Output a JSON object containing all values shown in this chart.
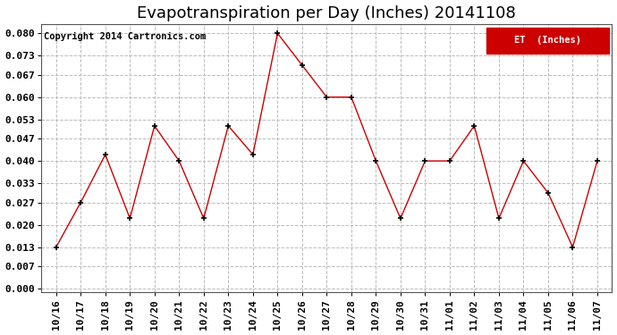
{
  "title": "Evapotranspiration per Day (Inches) 20141108",
  "copyright_text": "Copyright 2014 Cartronics.com",
  "legend_label": "ET  (Inches)",
  "legend_bg_color": "#cc0000",
  "legend_text_color": "#ffffff",
  "x_labels": [
    "10/16",
    "10/17",
    "10/18",
    "10/19",
    "10/20",
    "10/21",
    "10/22",
    "10/23",
    "10/24",
    "10/25",
    "10/26",
    "10/27",
    "10/28",
    "10/29",
    "10/30",
    "10/31",
    "11/01",
    "11/02",
    "11/03",
    "11/04",
    "11/05",
    "11/06",
    "11/07"
  ],
  "y_values": [
    0.013,
    0.027,
    0.042,
    0.022,
    0.051,
    0.04,
    0.022,
    0.051,
    0.042,
    0.08,
    0.07,
    0.06,
    0.06,
    0.04,
    0.022,
    0.04,
    0.04,
    0.051,
    0.022,
    0.04,
    0.03,
    0.013,
    0.04
  ],
  "line_color": "#cc0000",
  "marker_color": "#000000",
  "bg_color": "#ffffff",
  "grid_color": "#bbbbbb",
  "y_ticks": [
    0.0,
    0.007,
    0.013,
    0.02,
    0.027,
    0.033,
    0.04,
    0.047,
    0.053,
    0.06,
    0.067,
    0.073,
    0.08
  ],
  "ylim": [
    -0.001,
    0.083
  ],
  "title_fontsize": 13,
  "copyright_fontsize": 7.5,
  "tick_fontsize": 8
}
